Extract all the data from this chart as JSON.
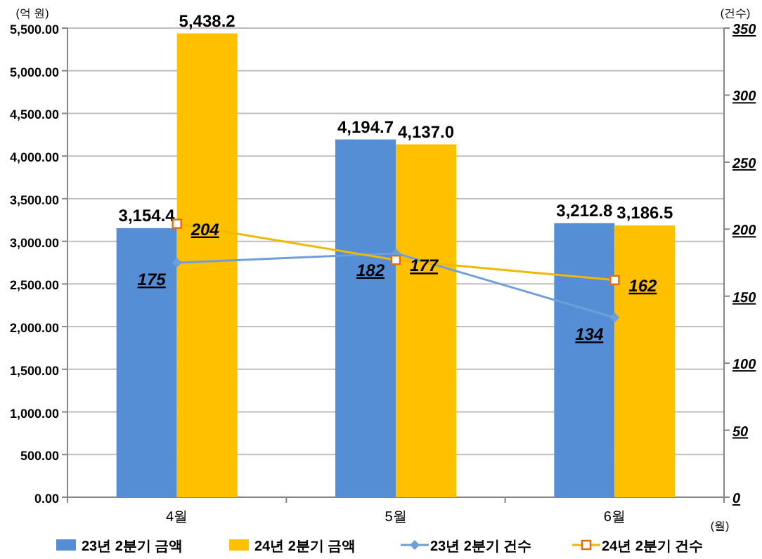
{
  "chart_data": {
    "type": "bar",
    "categories": [
      "4월",
      "5월",
      "6월"
    ],
    "xlabel": "(월)",
    "ylabel": "(억 원)",
    "y2label": "(건수)",
    "ylim": [
      0,
      5500
    ],
    "yticks": [
      {
        "value": 0,
        "label": "0.00"
      },
      {
        "value": 500,
        "label": "500.00"
      },
      {
        "value": 1000,
        "label": "1,000.00"
      },
      {
        "value": 1500,
        "label": "1,500.00"
      },
      {
        "value": 2000,
        "label": "2,000.00"
      },
      {
        "value": 2500,
        "label": "2,500.00"
      },
      {
        "value": 3000,
        "label": "3,000.00"
      },
      {
        "value": 3500,
        "label": "3,500.00"
      },
      {
        "value": 4000,
        "label": "4,000.00"
      },
      {
        "value": 4500,
        "label": "4,500.00"
      },
      {
        "value": 5000,
        "label": "5,000.00"
      },
      {
        "value": 5500,
        "label": "5,500.00"
      }
    ],
    "y2lim": [
      0,
      350
    ],
    "y2ticks": [
      0,
      50,
      100,
      150,
      200,
      250,
      300,
      350
    ],
    "grid": "y",
    "legend": "bottom",
    "series": [
      {
        "name": "23년 2분기 금액",
        "color": "#558ed5",
        "values": [
          3154.4,
          4194.7,
          3212.8
        ],
        "value_labels": [
          "3,154.4",
          "4,194.7",
          "3,212.8"
        ]
      },
      {
        "name": "24년 2분기 금액",
        "color": "#ffc000",
        "values": [
          5438.2,
          4137.0,
          3186.5
        ],
        "value_labels": [
          "5,438.2",
          "4,137.0",
          "3,186.5"
        ]
      },
      {
        "name": "23년 2분기 건수",
        "type": "line",
        "axis": "y2",
        "color": "#6f9fd8",
        "marker": "diamond",
        "values": [
          175,
          182,
          134
        ],
        "value_labels": [
          "175",
          "182",
          "134"
        ]
      },
      {
        "name": "24년 2분기 건수",
        "type": "line",
        "axis": "y2",
        "color": "#f0b800",
        "marker": "square",
        "values": [
          204,
          177,
          162
        ],
        "value_labels": [
          "204",
          "177",
          "162"
        ]
      }
    ]
  }
}
